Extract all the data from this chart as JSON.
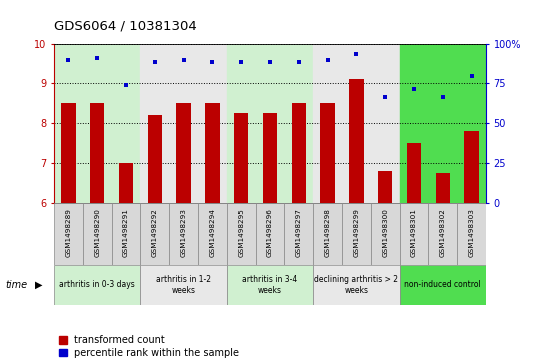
{
  "title": "GDS6064 / 10381304",
  "samples": [
    "GSM1498289",
    "GSM1498290",
    "GSM1498291",
    "GSM1498292",
    "GSM1498293",
    "GSM1498294",
    "GSM1498295",
    "GSM1498296",
    "GSM1498297",
    "GSM1498298",
    "GSM1498299",
    "GSM1498300",
    "GSM1498301",
    "GSM1498302",
    "GSM1498303"
  ],
  "red_values": [
    8.5,
    8.5,
    7.0,
    8.2,
    8.5,
    8.5,
    8.25,
    8.25,
    8.5,
    8.5,
    9.1,
    6.8,
    7.5,
    6.75,
    7.8
  ],
  "blue_values": [
    9.6,
    9.65,
    8.95,
    9.55,
    9.6,
    9.55,
    9.55,
    9.55,
    9.55,
    9.6,
    9.75,
    8.65,
    8.85,
    8.65,
    9.2
  ],
  "groups": [
    {
      "label": "arthritis in 0-3 days",
      "start": 0,
      "end": 3,
      "color": "#d0f0d0"
    },
    {
      "label": "arthritis in 1-2\nweeks",
      "start": 3,
      "end": 6,
      "color": "#e8e8e8"
    },
    {
      "label": "arthritis in 3-4\nweeks",
      "start": 6,
      "end": 9,
      "color": "#d0f0d0"
    },
    {
      "label": "declining arthritis > 2\nweeks",
      "start": 9,
      "end": 12,
      "color": "#e8e8e8"
    },
    {
      "label": "non-induced control",
      "start": 12,
      "end": 15,
      "color": "#50dd50"
    }
  ],
  "ylim_left": [
    6,
    10
  ],
  "ylim_right": [
    0,
    100
  ],
  "yticks_left": [
    6,
    7,
    8,
    9,
    10
  ],
  "yticks_right": [
    0,
    25,
    50,
    75,
    100
  ],
  "bar_color": "#bb0000",
  "dot_color": "#0000cc",
  "bar_width": 0.5,
  "legend_labels": [
    "transformed count",
    "percentile rank within the sample"
  ],
  "legend_colors": [
    "#bb0000",
    "#0000cc"
  ],
  "xlabel": "time",
  "background_color": "#ffffff",
  "tick_box_color": "#d8d8d8",
  "tick_box_edge": "#888888"
}
